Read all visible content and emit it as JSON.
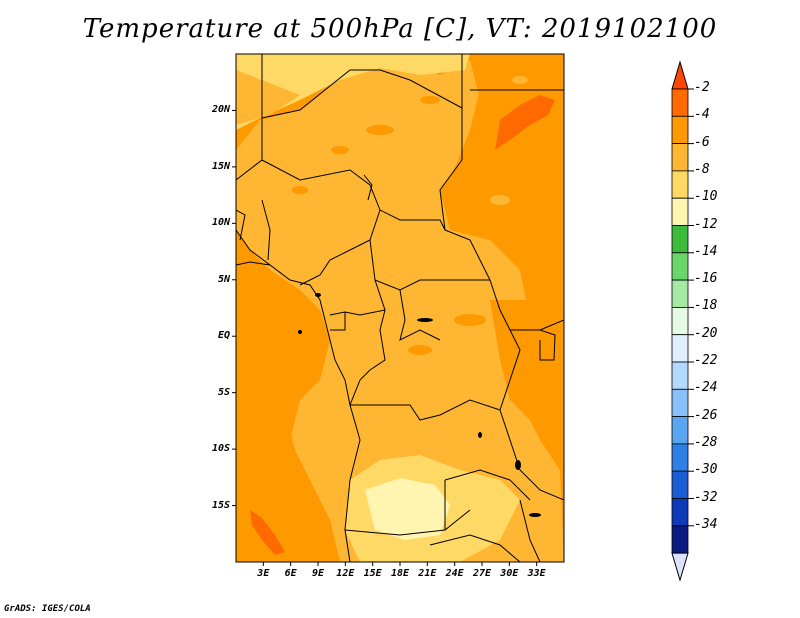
{
  "title": "Temperature at 500hPa [C], VT: 2019102100",
  "credit": "GrADS: IGES/COLA",
  "map": {
    "lat_range": [
      -20,
      25
    ],
    "lon_range": [
      0,
      36
    ],
    "y_ticks": [
      {
        "lat": 20,
        "label": "20N"
      },
      {
        "lat": 15,
        "label": "15N"
      },
      {
        "lat": 10,
        "label": "10N"
      },
      {
        "lat": 5,
        "label": "5N"
      },
      {
        "lat": 0,
        "label": "EQ"
      },
      {
        "lat": -5,
        "label": "5S"
      },
      {
        "lat": -10,
        "label": "10S"
      },
      {
        "lat": -15,
        "label": "15S"
      }
    ],
    "x_ticks": [
      {
        "lon": 3,
        "label": "3E"
      },
      {
        "lon": 6,
        "label": "6E"
      },
      {
        "lon": 9,
        "label": "9E"
      },
      {
        "lon": 12,
        "label": "12E"
      },
      {
        "lon": 15,
        "label": "15E"
      },
      {
        "lon": 18,
        "label": "18E"
      },
      {
        "lon": 21,
        "label": "21E"
      },
      {
        "lon": 24,
        "label": "24E"
      },
      {
        "lon": 27,
        "label": "27E"
      },
      {
        "lon": 30,
        "label": "30E"
      },
      {
        "lon": 33,
        "label": "33E"
      }
    ]
  },
  "colorbar": {
    "labels": [
      "-2",
      "-4",
      "-6",
      "-8",
      "-10",
      "-12",
      "-14",
      "-16",
      "-18",
      "-20",
      "-22",
      "-24",
      "-26",
      "-28",
      "-30",
      "-32",
      "-34"
    ],
    "colors": [
      "#ff4500",
      "#ff6a00",
      "#ff9900",
      "#ffb733",
      "#ffd966",
      "#fff5b0",
      "#3cba3c",
      "#6ad66a",
      "#a3e8a3",
      "#e6fae6",
      "#e0f0ff",
      "#b4d9ff",
      "#87c0fa",
      "#5aa5f0",
      "#2e80e6",
      "#1a5cd6",
      "#0d3ab8",
      "#0a1a80",
      "#dde2ff"
    ]
  }
}
